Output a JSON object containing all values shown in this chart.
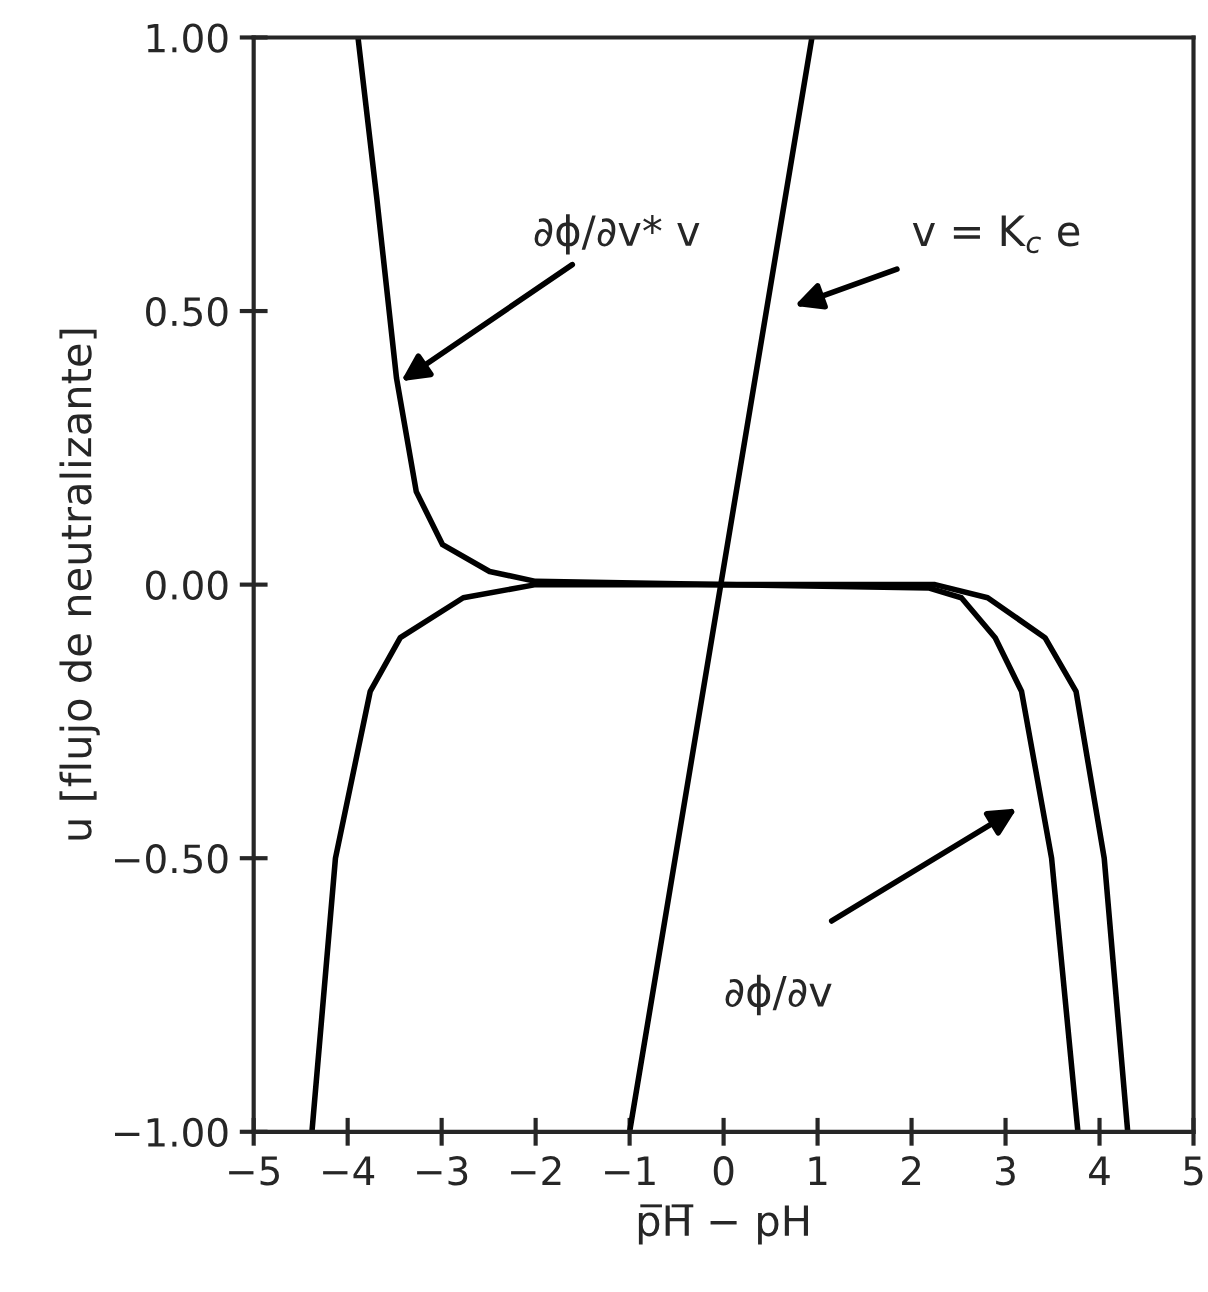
{
  "chart_data": {
    "type": "line",
    "xlabel": "p̅H̅ − pH",
    "ylabel": "u [flujo de neutralizante]",
    "series": [
      {
        "color": "#000000",
        "x": [
          -4.38,
          -4.13,
          -3.76,
          -3.44,
          -2.77,
          -2.0,
          0,
          2.25,
          2.81,
          3.42,
          3.75,
          4.05,
          4.3
        ],
        "values": [
          -1.0,
          -0.5,
          -0.195,
          -0.097,
          -0.024,
          0.0,
          0.0,
          0.0,
          -0.024,
          -0.097,
          -0.195,
          -0.5,
          -1.0
        ]
      },
      {
        "color": "#000000",
        "x": [
          -3.89,
          -3.69,
          -3.48,
          -3.27,
          -2.99,
          -2.49,
          -2.0,
          0,
          2.18,
          2.53,
          2.89,
          3.17,
          3.49,
          3.77
        ],
        "values": [
          1.0,
          0.706,
          0.377,
          0.17,
          0.073,
          0.024,
          0.006,
          0.0,
          -0.006,
          -0.024,
          -0.097,
          -0.195,
          -0.5,
          -1.0
        ]
      },
      {
        "color": "#000000",
        "x": [
          -1.0,
          0.94
        ],
        "values": [
          -1.0,
          1.0
        ]
      }
    ],
    "annotations": [
      {
        "text": "∂ϕ/∂v* v",
        "x": -3.48,
        "y": 0.366
      },
      "v = K$_{c}$ e",
      "∂ϕ/∂v"
    ],
    "xlim": [
      -5,
      5
    ],
    "ylim": [
      -1.0,
      1.0
    ],
    "xticks": [
      {
        "value": -5,
        "label": "−5"
      },
      {
        "value": -4,
        "label": "−4"
      },
      {
        "value": -3,
        "label": "−3"
      },
      {
        "value": -2,
        "label": "−2"
      },
      {
        "value": -1,
        "label": "−1"
      },
      0,
      1,
      2,
      3,
      4,
      5
    ],
    "yticks": [
      {
        "value": -1.0,
        "label": "−1.00"
      },
      {
        "value": -0.5,
        "label": "−0.50"
      },
      {
        "value": 0.0,
        "label": "0.00"
      },
      {
        "value": 0.5,
        "label": "0.50"
      },
      {
        "value": 1.0,
        "label": "1.00"
      }
    ],
    "grid": false,
    "legend": false,
    "marker": "none",
    "line_style": "solid"
  }
}
